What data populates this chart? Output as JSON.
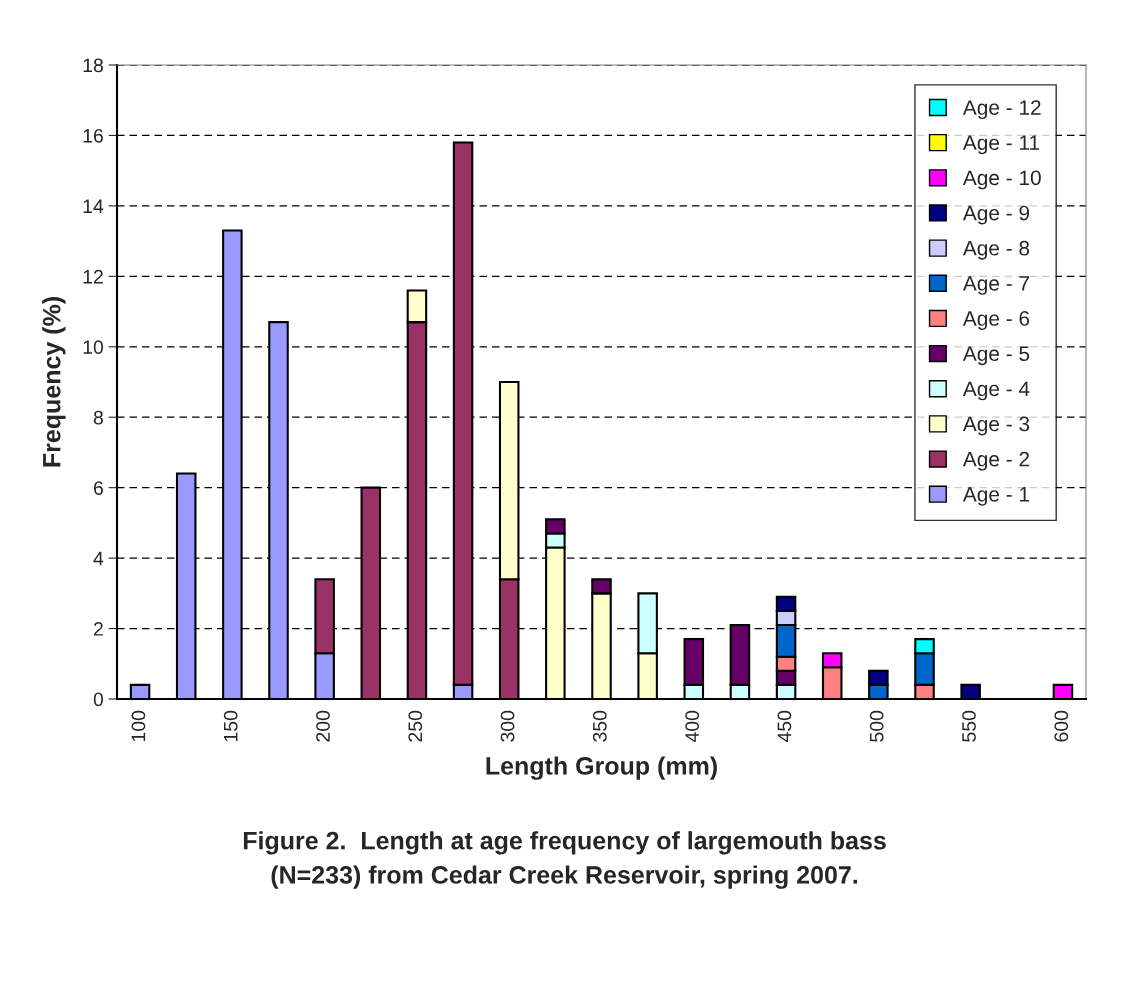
{
  "chart_data": {
    "type": "bar",
    "stacked": true,
    "xlabel": "Length Group (mm)",
    "ylabel": "Frequency (%)",
    "categories": [
      "100",
      null,
      "150",
      null,
      "200",
      null,
      "250",
      null,
      "300",
      null,
      "350",
      null,
      "400",
      null,
      "450",
      null,
      "500",
      null,
      "550",
      null,
      "600"
    ],
    "ylim": [
      0,
      18
    ],
    "yticks": [
      0,
      2,
      4,
      6,
      8,
      10,
      12,
      14,
      16,
      18
    ],
    "grid": "y",
    "legend": "top right",
    "series": [
      {
        "name": "Age - 1",
        "color": "#9999ff",
        "values": [
          0.4,
          6.4,
          13.3,
          10.7,
          1.3,
          null,
          null,
          0.4,
          null,
          null,
          null,
          null,
          null,
          null,
          null,
          null,
          null,
          null,
          null,
          null,
          null
        ]
      },
      {
        "name": "Age - 2",
        "color": "#993366",
        "values": [
          null,
          null,
          null,
          null,
          2.1,
          6.0,
          10.7,
          15.4,
          3.4,
          null,
          null,
          null,
          null,
          null,
          null,
          null,
          null,
          null,
          null,
          null,
          null
        ]
      },
      {
        "name": "Age - 3",
        "color": "#ffffcc",
        "values": [
          null,
          null,
          null,
          null,
          null,
          null,
          0.9,
          null,
          5.6,
          4.3,
          3.0,
          1.3,
          null,
          null,
          null,
          null,
          null,
          null,
          null,
          null,
          null
        ]
      },
      {
        "name": "Age - 4",
        "color": "#ccffff",
        "values": [
          null,
          null,
          null,
          null,
          null,
          null,
          null,
          null,
          null,
          0.4,
          null,
          1.7,
          0.4,
          0.4,
          0.4,
          null,
          null,
          null,
          null,
          null,
          null
        ]
      },
      {
        "name": "Age - 5",
        "color": "#660066",
        "values": [
          null,
          null,
          null,
          null,
          null,
          null,
          null,
          null,
          null,
          0.4,
          0.4,
          null,
          1.3,
          1.7,
          0.4,
          null,
          null,
          null,
          null,
          null,
          null
        ]
      },
      {
        "name": "Age - 6",
        "color": "#ff8080",
        "values": [
          null,
          null,
          null,
          null,
          null,
          null,
          null,
          null,
          null,
          null,
          null,
          null,
          null,
          null,
          0.4,
          0.9,
          null,
          0.4,
          null,
          null,
          null
        ]
      },
      {
        "name": "Age - 7",
        "color": "#0066cc",
        "values": [
          null,
          null,
          null,
          null,
          null,
          null,
          null,
          null,
          null,
          null,
          null,
          null,
          null,
          null,
          0.9,
          null,
          0.4,
          0.9,
          null,
          null,
          null
        ]
      },
      {
        "name": "Age - 8",
        "color": "#ccccff",
        "values": [
          null,
          null,
          null,
          null,
          null,
          null,
          null,
          null,
          null,
          null,
          null,
          null,
          null,
          null,
          0.4,
          null,
          null,
          null,
          null,
          null,
          null
        ]
      },
      {
        "name": "Age - 9",
        "color": "#000080",
        "values": [
          null,
          null,
          null,
          null,
          null,
          null,
          null,
          null,
          null,
          null,
          null,
          null,
          null,
          null,
          0.4,
          null,
          0.4,
          null,
          0.4,
          null,
          null
        ]
      },
      {
        "name": "Age - 10",
        "color": "#ff00ff",
        "values": [
          null,
          null,
          null,
          null,
          null,
          null,
          null,
          null,
          null,
          null,
          null,
          null,
          null,
          null,
          null,
          0.4,
          null,
          null,
          null,
          null,
          0.4
        ]
      },
      {
        "name": "Age - 11",
        "color": "#ffff00",
        "values": [
          null,
          null,
          null,
          null,
          null,
          null,
          null,
          null,
          null,
          null,
          null,
          null,
          null,
          null,
          null,
          null,
          null,
          null,
          null,
          null,
          null
        ]
      },
      {
        "name": "Age - 12",
        "color": "#00ffff",
        "values": [
          null,
          null,
          null,
          null,
          null,
          null,
          null,
          null,
          null,
          null,
          null,
          null,
          null,
          null,
          null,
          null,
          null,
          0.4,
          null,
          null,
          null
        ]
      }
    ],
    "annotations": [
      "Figure 2.  Length at age frequency of largemouth bass\n(N=233) from Cedar Creek Reservoir, spring 2007."
    ]
  }
}
